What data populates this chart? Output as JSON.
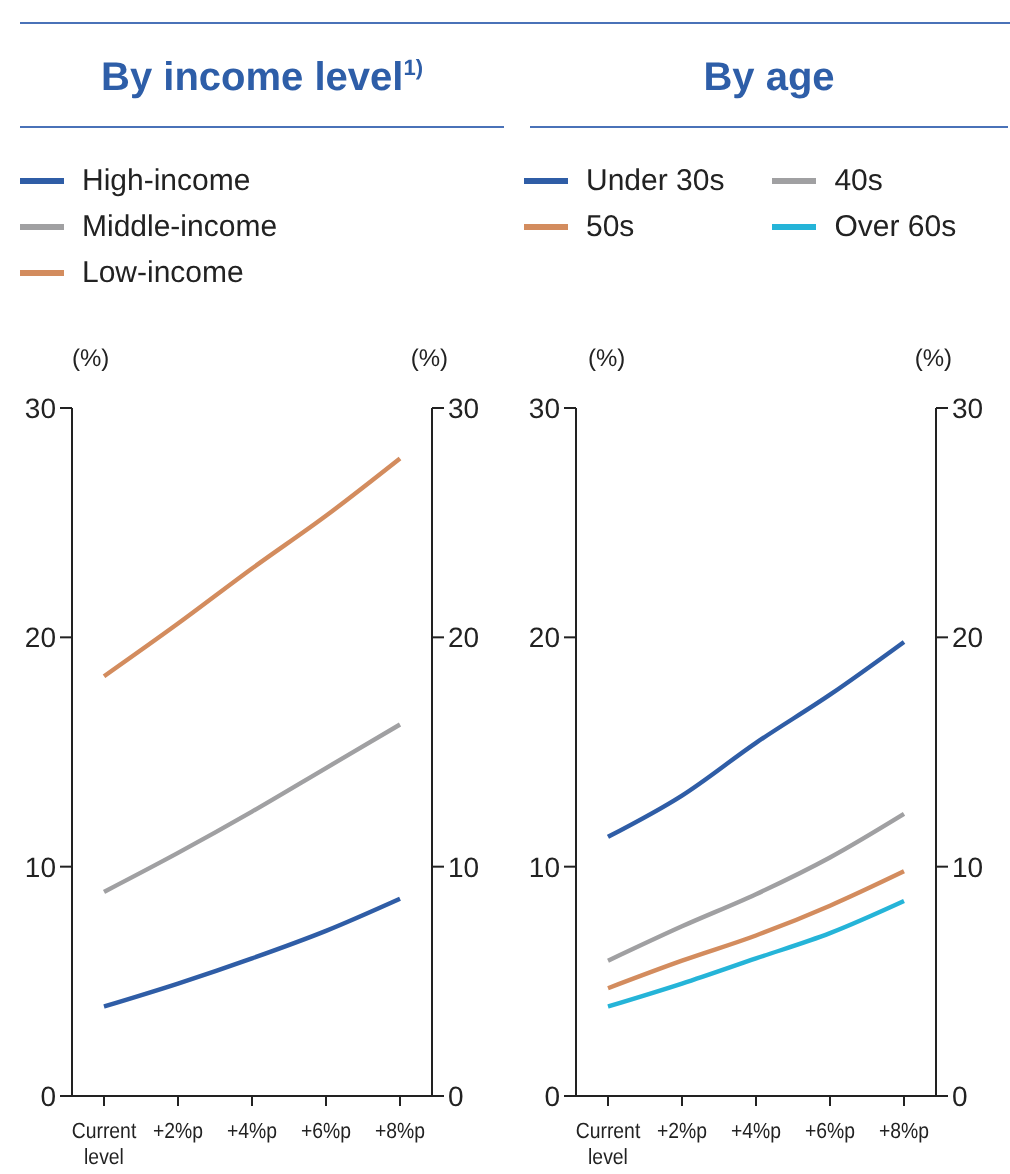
{
  "chart_data": [
    {
      "type": "line",
      "title": "By income level$^{1)}$",
      "categories": [
        "Current level",
        "+2%p",
        "+4%p",
        "+6%p",
        "+8%p"
      ],
      "series": [
        {
          "name": "High-income",
          "color": "#2f5da6",
          "values": [
            3.9,
            4.9,
            6.0,
            7.2,
            8.6
          ]
        },
        {
          "name": "Middle-income",
          "color": "#a0a0a2",
          "values": [
            8.9,
            10.6,
            12.4,
            14.3,
            16.2
          ]
        },
        {
          "name": "Low-income",
          "color": "#d38c5e",
          "values": [
            18.3,
            20.6,
            23.0,
            25.3,
            27.8
          ]
        }
      ],
      "ylabel": "(%)",
      "y2label": "(%)",
      "ylim": [
        0,
        30
      ],
      "yticks": [
        0,
        10,
        20,
        30
      ],
      "y2lim": [
        0,
        30
      ],
      "y2ticks": [
        0,
        10,
        20,
        30
      ],
      "legend": "top left",
      "grid": false
    },
    {
      "type": "line",
      "title": "By age",
      "categories": [
        "Current level",
        "+2%p",
        "+4%p",
        "+6%p",
        "+8%p"
      ],
      "series": [
        {
          "name": "Under 30s",
          "color": "#2f5da6",
          "values": [
            11.3,
            13.1,
            15.4,
            17.5,
            19.8
          ]
        },
        {
          "name": "40s",
          "color": "#a0a0a2",
          "values": [
            5.9,
            7.4,
            8.8,
            10.4,
            12.3
          ]
        },
        {
          "name": "50s",
          "color": "#d38c5e",
          "values": [
            4.7,
            5.9,
            7.0,
            8.3,
            9.8
          ]
        },
        {
          "name": "Over 60s",
          "color": "#25b4d8",
          "values": [
            3.9,
            4.9,
            6.0,
            7.1,
            8.5
          ]
        }
      ],
      "ylabel": "(%)",
      "y2label": "(%)",
      "ylim": [
        0,
        30
      ],
      "yticks": [
        0,
        10,
        20,
        30
      ],
      "y2lim": [
        0,
        30
      ],
      "y2ticks": [
        0,
        10,
        20,
        30
      ],
      "legend": "top left",
      "grid": false
    }
  ]
}
